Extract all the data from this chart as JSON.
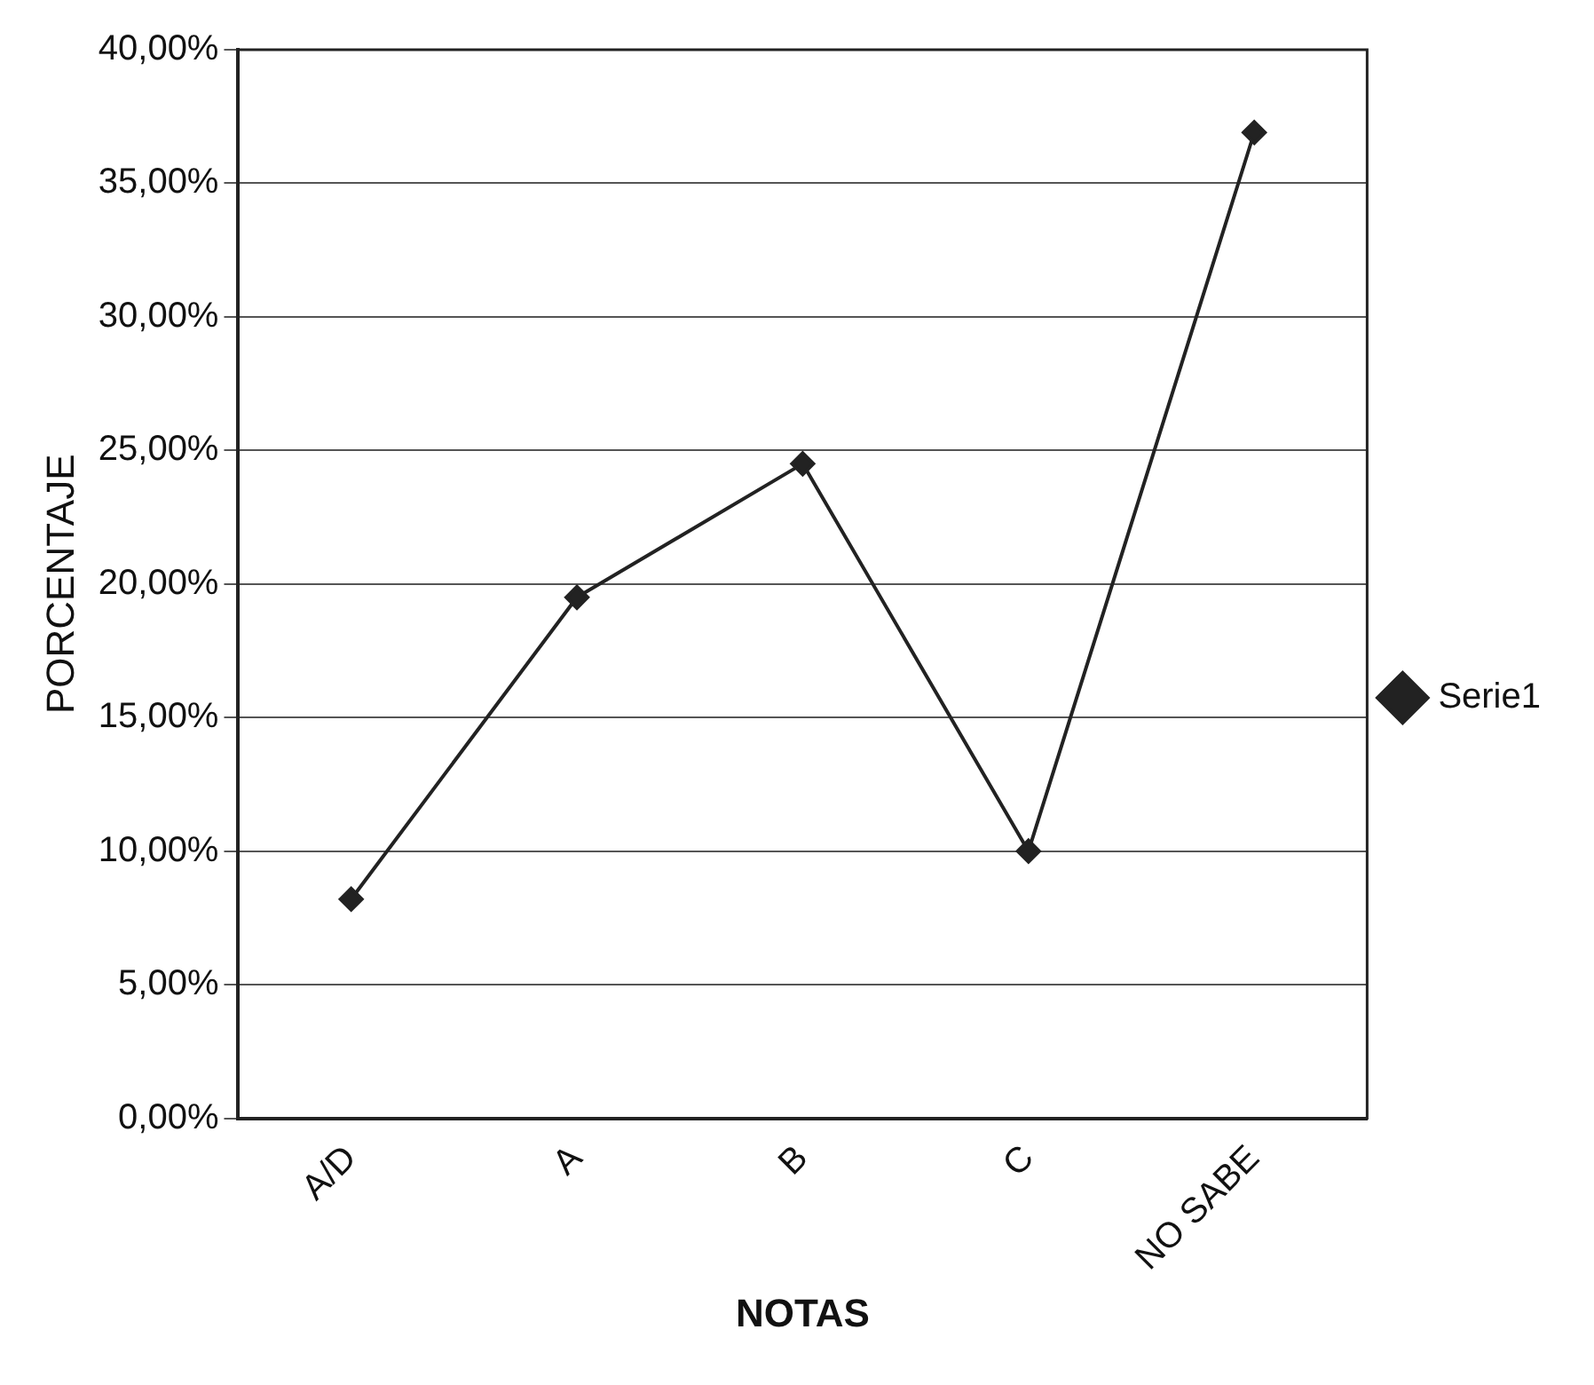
{
  "chart_data": {
    "type": "line",
    "xlabel": "NOTAS",
    "ylabel": "PORCENTAJE",
    "categories": [
      "A/D",
      "A",
      "B",
      "C",
      "NO SABE"
    ],
    "series": [
      {
        "name": "Serie1",
        "color": "#222222",
        "values": [
          8.2,
          19.5,
          24.5,
          10,
          36.9
        ]
      }
    ],
    "ylim": [
      0,
      40
    ],
    "yticks": [
      {
        "value": 0,
        "label": "0,00%"
      },
      {
        "value": 5,
        "label": "5,00%"
      },
      {
        "value": 10,
        "label": "10,00%"
      },
      {
        "value": 15,
        "label": "15,00%"
      },
      {
        "value": 20,
        "label": "20,00%"
      },
      {
        "value": 25,
        "label": "25,00%"
      },
      {
        "value": 30,
        "label": "30,00%"
      },
      {
        "value": 35,
        "label": "35,00%"
      },
      {
        "value": 40,
        "label": "40,00%"
      }
    ],
    "grid": "y",
    "legend": "right",
    "marker": "diamond",
    "line_style": "solid"
  }
}
